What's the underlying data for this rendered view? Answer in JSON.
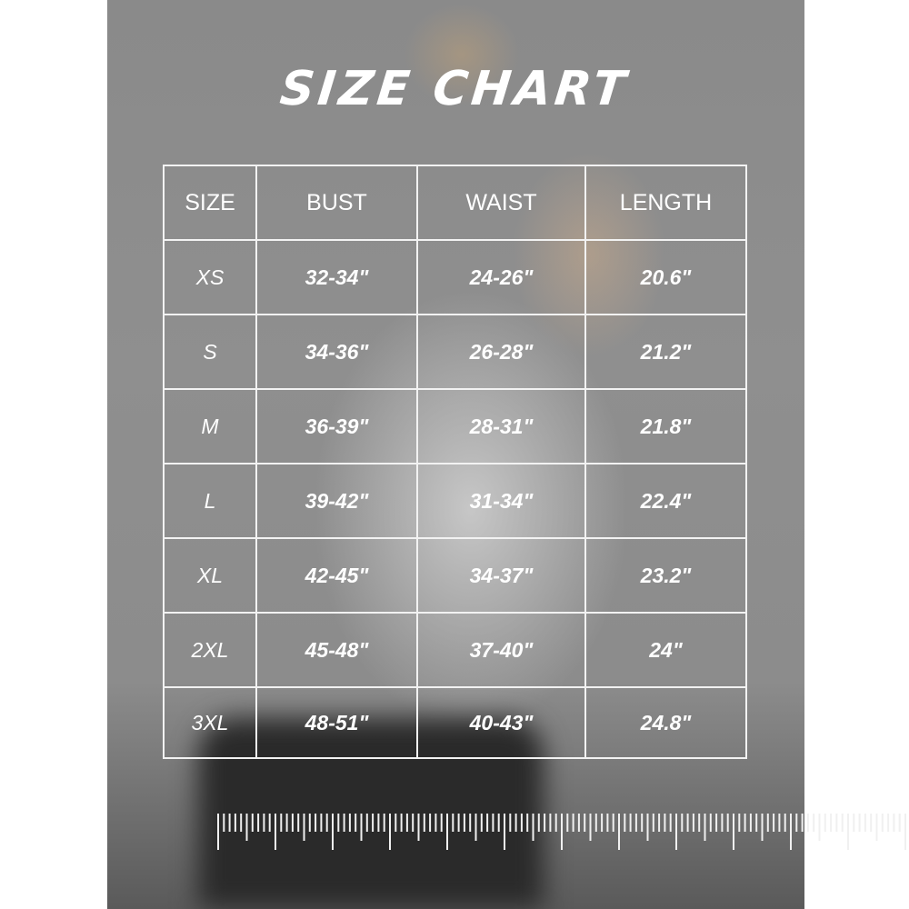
{
  "title": "SIZE CHART",
  "headers": [
    "SIZE",
    "BUST",
    "WAIST",
    "LENGTH"
  ],
  "rows": [
    [
      "XS",
      "32-34\"",
      "24-26\"",
      "20.6\""
    ],
    [
      "S",
      "34-36\"",
      "26-28\"",
      "21.2\""
    ],
    [
      "M",
      "36-39\"",
      "28-31\"",
      "21.8\""
    ],
    [
      "L",
      "39-42\"",
      "31-34\"",
      "22.4\""
    ],
    [
      "XL",
      "42-45\"",
      "34-37\"",
      "23.2\""
    ],
    [
      "2XL",
      "45-48\"",
      "37-40\"",
      "24\""
    ],
    [
      "3XL",
      "48-51\"",
      "40-43\"",
      "24.8\""
    ]
  ],
  "colors": {
    "text": "#ffffff",
    "background": "#8c8c8c"
  }
}
